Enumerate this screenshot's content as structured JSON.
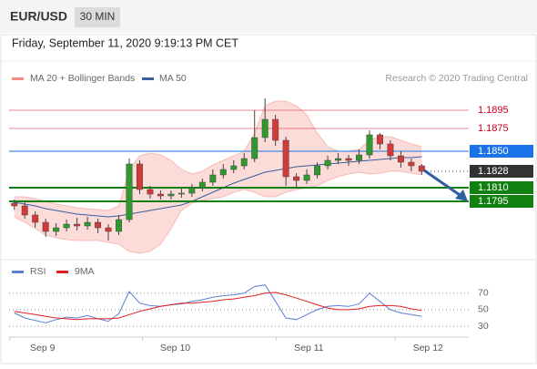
{
  "header": {
    "symbol": "EUR/USD",
    "interval": "30 MIN",
    "timestamp": "Friday, September 11, 2020 9:19:13 PM CET"
  },
  "chart_data": [
    {
      "type": "candlestick",
      "credit": "Research © 2020 Trading Central",
      "xlim": [
        0,
        44
      ],
      "ylim": [
        1.1731,
        1.1916
      ],
      "open": [
        1.1793,
        1.179,
        1.178,
        1.1772,
        1.1762,
        1.1766,
        1.177,
        1.1768,
        1.1772,
        1.1766,
        1.1762,
        1.1775,
        1.1836,
        1.1808,
        1.1803,
        1.1801,
        1.1803,
        1.1804,
        1.181,
        1.1816,
        1.1824,
        1.183,
        1.1834,
        1.1842,
        1.1865,
        1.1885,
        1.1862,
        1.1822,
        1.1818,
        1.1824,
        1.1834,
        1.184,
        1.1842,
        1.184,
        1.1846,
        1.1868,
        1.1858,
        1.1845,
        1.1838,
        1.1834
      ],
      "high": [
        1.1797,
        1.1794,
        1.1784,
        1.1776,
        1.1771,
        1.1775,
        1.1777,
        1.1778,
        1.1776,
        1.177,
        1.178,
        1.1842,
        1.184,
        1.1812,
        1.1807,
        1.1807,
        1.1809,
        1.1814,
        1.182,
        1.183,
        1.1836,
        1.184,
        1.1848,
        1.1895,
        1.1908,
        1.189,
        1.1866,
        1.1826,
        1.183,
        1.1838,
        1.1845,
        1.1848,
        1.1846,
        1.1852,
        1.1873,
        1.187,
        1.1862,
        1.185,
        1.1842,
        1.1836
      ],
      "low": [
        1.1786,
        1.1776,
        1.1766,
        1.1756,
        1.1757,
        1.1762,
        1.1763,
        1.1764,
        1.176,
        1.1752,
        1.1758,
        1.1772,
        1.1803,
        1.1798,
        1.1797,
        1.1797,
        1.1799,
        1.18,
        1.1806,
        1.1812,
        1.182,
        1.1826,
        1.183,
        1.1838,
        1.186,
        1.1856,
        1.1812,
        1.181,
        1.1814,
        1.182,
        1.183,
        1.1836,
        1.1834,
        1.1836,
        1.1842,
        1.1852,
        1.184,
        1.1832,
        1.1828,
        1.1824
      ],
      "close": [
        1.179,
        1.178,
        1.1772,
        1.1762,
        1.1766,
        1.177,
        1.1768,
        1.1772,
        1.1766,
        1.1762,
        1.1775,
        1.1836,
        1.1808,
        1.1803,
        1.1801,
        1.1803,
        1.1804,
        1.181,
        1.1816,
        1.1824,
        1.183,
        1.1834,
        1.1842,
        1.1865,
        1.1885,
        1.1862,
        1.1822,
        1.1818,
        1.1824,
        1.1834,
        1.184,
        1.1842,
        1.184,
        1.1846,
        1.1868,
        1.1858,
        1.1845,
        1.1838,
        1.1834,
        1.1828
      ],
      "up_color": "#2e9a2e",
      "down_color": "#d23a3a",
      "bollinger": {
        "name": "MA 20 + Bollinger Bands",
        "color": "#f28b82",
        "upper": [
          1.18,
          1.18,
          1.1798,
          1.1795,
          1.1792,
          1.179,
          1.1788,
          1.1787,
          1.1786,
          1.1785,
          1.179,
          1.183,
          1.1845,
          1.1848,
          1.1846,
          1.184,
          1.183,
          1.1825,
          1.1828,
          1.1835,
          1.184,
          1.1845,
          1.185,
          1.187,
          1.19,
          1.1905,
          1.1905,
          1.19,
          1.189,
          1.187,
          1.1855,
          1.185,
          1.185,
          1.1852,
          1.1862,
          1.1866,
          1.1866,
          1.1862,
          1.1858,
          1.1855
        ],
        "lower": [
          1.1778,
          1.1772,
          1.1765,
          1.1758,
          1.1755,
          1.1753,
          1.1752,
          1.1752,
          1.1752,
          1.175,
          1.1748,
          1.174,
          1.1738,
          1.174,
          1.1748,
          1.1765,
          1.1785,
          1.1793,
          1.1796,
          1.1798,
          1.18,
          1.1805,
          1.1808,
          1.1805,
          1.18,
          1.18,
          1.1805,
          1.1808,
          1.181,
          1.1812,
          1.1818,
          1.1822,
          1.1825,
          1.1827,
          1.1825,
          1.1826,
          1.1828,
          1.1828,
          1.1826,
          1.1824
        ]
      },
      "ma50": {
        "name": "MA 50",
        "color": "#3a5f9e",
        "values": [
          1.1794,
          1.1792,
          1.179,
          1.1787,
          1.1785,
          1.1783,
          1.1781,
          1.178,
          1.1779,
          1.1778,
          1.1779,
          1.1781,
          1.1783,
          1.1785,
          1.1787,
          1.1789,
          1.1791,
          1.1795,
          1.18,
          1.1805,
          1.181,
          1.1815,
          1.1819,
          1.1823,
          1.1827,
          1.1829,
          1.1831,
          1.1833,
          1.1834,
          1.1835,
          1.1836,
          1.1837,
          1.1838,
          1.1839,
          1.184,
          1.1841,
          1.1842,
          1.1843,
          1.1843,
          1.1844
        ]
      },
      "levels": [
        {
          "value": 1.1895,
          "label": "1.1895",
          "color": "#d0021b",
          "style": "resistance"
        },
        {
          "value": 1.1875,
          "label": "1.1875",
          "color": "#d0021b",
          "style": "resistance"
        },
        {
          "value": 1.185,
          "label": "1.1850",
          "color": "#1a73e8",
          "style": "pivot"
        },
        {
          "value": 1.1828,
          "label": "1.1828",
          "color": "#333333",
          "style": "last"
        },
        {
          "value": 1.181,
          "label": "1.1810",
          "color": "#118011",
          "style": "support"
        },
        {
          "value": 1.1795,
          "label": "1.1795",
          "color": "#118011",
          "style": "support"
        }
      ]
    },
    {
      "type": "line",
      "xlim": [
        0,
        44
      ],
      "ylim": [
        19,
        83
      ],
      "yticks": [
        30,
        50,
        70
      ],
      "xticks": [
        {
          "value": 3.2,
          "label": "Sep 9"
        },
        {
          "value": 15.9,
          "label": "Sep 10"
        },
        {
          "value": 28.7,
          "label": "Sep 11"
        },
        {
          "value": 40.1,
          "label": "Sep 12"
        }
      ],
      "series": [
        {
          "name": "RSI",
          "color": "#5b7fd6",
          "values": [
            46,
            40,
            37,
            34,
            38,
            41,
            40,
            43,
            39,
            36,
            45,
            72,
            58,
            55,
            54,
            56,
            57,
            60,
            62,
            65,
            67,
            68,
            70,
            78,
            80,
            60,
            40,
            38,
            44,
            50,
            54,
            55,
            54,
            57,
            70,
            60,
            50,
            46,
            44,
            42
          ]
        },
        {
          "name": "9MA",
          "color": "#e02020",
          "values": [
            48,
            46,
            44,
            42,
            40,
            39,
            38,
            39,
            39,
            39,
            40,
            44,
            48,
            51,
            54,
            56,
            58,
            58,
            59,
            60,
            62,
            63,
            65,
            67,
            70,
            71,
            68,
            64,
            60,
            56,
            52,
            50,
            50,
            51,
            54,
            55,
            55,
            54,
            51,
            49
          ]
        }
      ]
    }
  ]
}
